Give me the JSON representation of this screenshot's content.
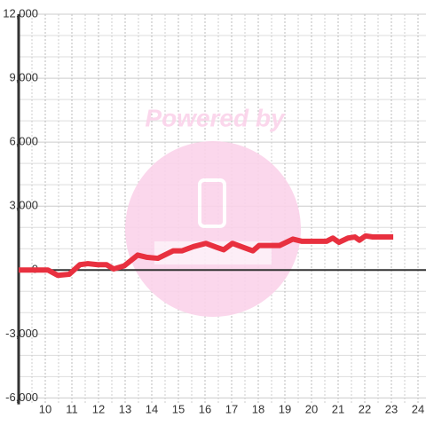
{
  "chart_data": {
    "type": "line",
    "watermark": "Powered by",
    "x": [
      9,
      10.1,
      10.47,
      10.9,
      11.3,
      11.6,
      11.97,
      12.3,
      12.57,
      12.97,
      13.47,
      13.8,
      14.23,
      14.8,
      15.13,
      15.57,
      16.03,
      16.47,
      16.7,
      17.03,
      17.47,
      17.8,
      18.03,
      18.47,
      18.8,
      19.3,
      19.63,
      20.23,
      20.57,
      20.8,
      21.03,
      21.37,
      21.63,
      21.8,
      22.03,
      22.3,
      23.07
    ],
    "series": [
      {
        "color": "#e8303f",
        "values": [
          0,
          0,
          -250,
          -200,
          250,
          300,
          250,
          250,
          50,
          200,
          700,
          600,
          550,
          900,
          900,
          1100,
          1250,
          1050,
          950,
          1250,
          1050,
          900,
          1150,
          1150,
          1150,
          1450,
          1350,
          1350,
          1350,
          1500,
          1300,
          1500,
          1550,
          1400,
          1600,
          1550,
          1550
        ]
      }
    ],
    "xlim": [
      9,
      24.3
    ],
    "xticks": [
      10,
      11,
      12,
      13,
      14,
      15,
      16,
      17,
      18,
      19,
      20,
      21,
      22,
      23,
      24
    ],
    "x_minor_ticks": [
      9.5,
      10.5,
      11.5,
      12.5,
      13.5,
      14.5,
      15.5,
      16.5,
      17.5,
      18.5,
      19.5,
      20.5,
      21.5,
      22.5,
      23.5
    ],
    "ylim": [
      -6300,
      12000
    ],
    "yticks": [
      {
        "value": -6000,
        "label": "-6,000"
      },
      {
        "value": -3000,
        "label": "-3,000"
      },
      0,
      {
        "value": 3000,
        "label": "3,000"
      },
      {
        "value": 6000,
        "label": "6,000"
      },
      {
        "value": 9000,
        "label": "9,000"
      },
      {
        "value": 12000,
        "label": "12,000"
      }
    ],
    "y_minor_ticks": [
      -5000,
      -4000,
      -2000,
      -1000,
      1000,
      2000,
      4000,
      5000,
      7000,
      8000,
      10000,
      11000
    ],
    "grid": true
  }
}
